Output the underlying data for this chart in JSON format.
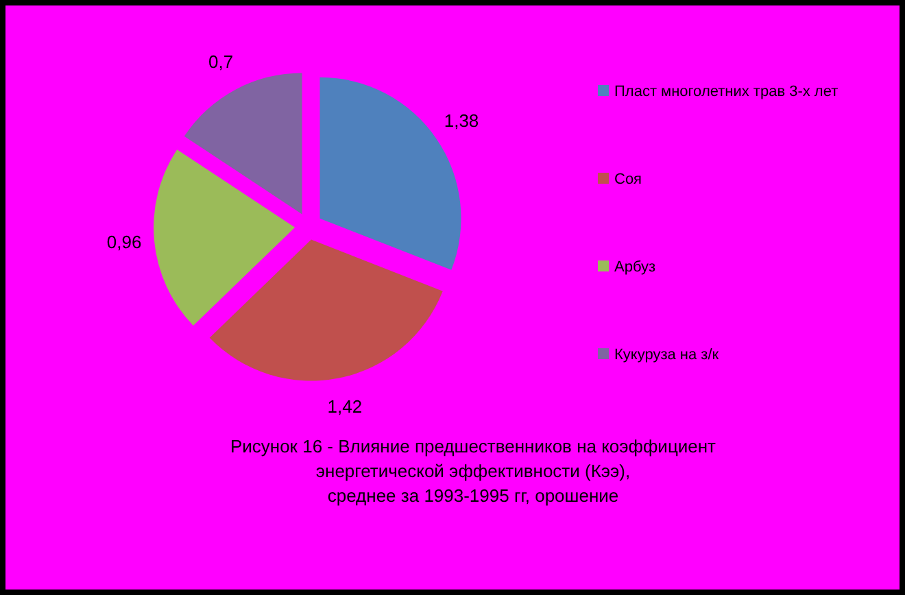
{
  "chart_data": {
    "type": "pie",
    "categories": [
      "Пласт многолетних трав 3-х лет",
      "Соя",
      "Арбуз",
      "Кукуруза на з/к"
    ],
    "values": [
      1.38,
      1.42,
      0.96,
      0.7
    ],
    "value_labels": [
      "1,38",
      "1,42",
      "0,96",
      "0,7"
    ],
    "colors": [
      "#4f81bd",
      "#c0504d",
      "#9bbb59",
      "#8064a2"
    ],
    "legend": "right",
    "annotations": [
      "Рисунок 16 - Влияние предшественников на коэффициент\nэнергетической эффективности (Кээ),\nсреднее за 1993-1995 гг, орошение"
    ]
  }
}
